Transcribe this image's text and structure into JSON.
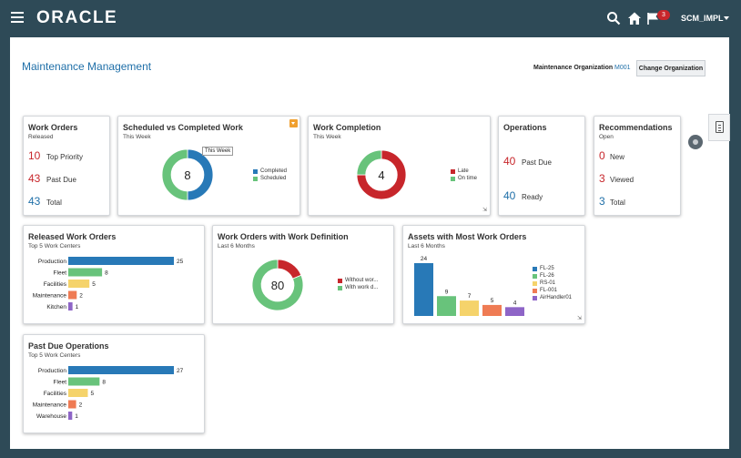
{
  "header": {
    "logo": "ORACLE",
    "notification_count": "3",
    "user": "SCM_IMPL",
    "icons": [
      "menu-icon",
      "search-icon",
      "home-icon",
      "flag-icon",
      "chevron-down-icon"
    ]
  },
  "page": {
    "title": "Maintenance Management",
    "org_label": "Maintenance Organization",
    "org_value": "M001",
    "change_org_button": "Change Organization"
  },
  "colors": {
    "blue": "#2879b7",
    "green": "#68c37b",
    "yellow": "#f5d36b",
    "orange": "#ef7b54",
    "purple": "#8e65c7",
    "red": "#c7262b",
    "header": "#2e4a57"
  },
  "work_orders": {
    "title": "Work Orders",
    "subtitle": "Released",
    "metrics": [
      {
        "value": "10",
        "label": "Top Priority"
      },
      {
        "value": "43",
        "label": "Past Due"
      },
      {
        "value": "43",
        "label": "Total"
      }
    ]
  },
  "scheduled": {
    "title": "Scheduled vs Completed Work",
    "subtitle": "This Week",
    "tooltip": "This Week",
    "center": "8",
    "legend": [
      "Completed",
      "Scheduled"
    ]
  },
  "completion": {
    "title": "Work Completion",
    "subtitle": "This Week",
    "center": "4",
    "legend": [
      "Late",
      "On time"
    ]
  },
  "operations": {
    "title": "Operations",
    "metrics": [
      {
        "value": "40",
        "label": "Past Due"
      },
      {
        "value": "40",
        "label": "Ready"
      }
    ]
  },
  "recommendations": {
    "title": "Recommendations",
    "subtitle": "Open",
    "metrics": [
      {
        "value": "0",
        "label": "New"
      },
      {
        "value": "3",
        "label": "Viewed"
      },
      {
        "value": "3",
        "label": "Total"
      }
    ]
  },
  "definition": {
    "title": "Work Orders with Work Definition",
    "subtitle": "Last 6 Months",
    "center": "80",
    "legend": [
      "Without wor...",
      "With work d..."
    ]
  },
  "assets": {
    "title": "Assets with Most Work Orders",
    "subtitle": "Last 6 Months",
    "legend": [
      "FL-25",
      "FL-26",
      "RS-01",
      "FL-001",
      "AirHandler01"
    ]
  },
  "released": {
    "title": "Released Work Orders",
    "subtitle": "Top 5 Work Centers"
  },
  "pastdue": {
    "title": "Past Due Operations",
    "subtitle": "Top 5 Work Centers"
  },
  "chart_data": [
    {
      "id": "released",
      "type": "bar",
      "orientation": "horizontal",
      "categories": [
        "Production",
        "Fleet",
        "Facilities",
        "Maintenance",
        "Kitchen"
      ],
      "values": [
        25,
        8,
        5,
        2,
        1
      ]
    },
    {
      "id": "pastdue",
      "type": "bar",
      "orientation": "horizontal",
      "categories": [
        "Production",
        "Fleet",
        "Facilities",
        "Maintenance",
        "Warehouse"
      ],
      "values": [
        27,
        8,
        5,
        2,
        1
      ]
    },
    {
      "id": "assets",
      "type": "bar",
      "categories": [
        "FL-25",
        "FL-26",
        "RS-01",
        "FL-001",
        "AirHandler01"
      ],
      "values": [
        24,
        9,
        7,
        5,
        4
      ]
    },
    {
      "id": "scheduled",
      "type": "pie",
      "labels": [
        "Completed",
        "Scheduled"
      ],
      "values": [
        4,
        4
      ]
    },
    {
      "id": "completion",
      "type": "pie",
      "labels": [
        "Late",
        "On time"
      ],
      "values": [
        3,
        1
      ]
    },
    {
      "id": "definition",
      "type": "pie",
      "labels": [
        "Without work definition",
        "With work definition"
      ],
      "values": [
        15,
        65
      ]
    }
  ]
}
